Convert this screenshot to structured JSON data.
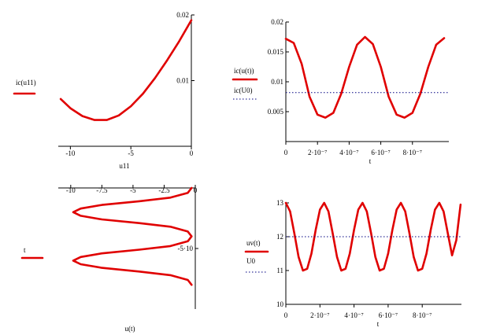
{
  "colors": {
    "curve": "#e00000",
    "dotted": "#000080",
    "axis": "#000000"
  },
  "chart_data": [
    {
      "type": "line",
      "xlabel": "u11",
      "xlim": [
        -11,
        0
      ],
      "ylim": [
        0,
        0.02
      ],
      "x_ticks": [
        {
          "v": -10,
          "label": "-10"
        },
        {
          "v": -5,
          "label": "-5"
        },
        {
          "v": 0,
          "label": "0"
        }
      ],
      "y_ticks": [
        {
          "v": 0.01,
          "label": "0.01"
        },
        {
          "v": 0.02,
          "label": "0.02"
        }
      ],
      "series": [
        {
          "name": "ic(u11)",
          "style": "solid",
          "x": [
            -10.8,
            -10,
            -9,
            -8,
            -7,
            -6,
            -5,
            -4,
            -3,
            -2,
            -1,
            0
          ],
          "y": [
            0.0072,
            0.0058,
            0.0046,
            0.004,
            0.004,
            0.0047,
            0.0061,
            0.008,
            0.0104,
            0.0131,
            0.016,
            0.0192
          ]
        }
      ]
    },
    {
      "type": "line",
      "xlabel": "t",
      "xlim": [
        0,
        1.03e-06
      ],
      "ylim": [
        0,
        0.02
      ],
      "x_ticks": [
        {
          "v": 0,
          "label": "0"
        },
        {
          "v": 2e-07,
          "label": "2·10⁻⁷"
        },
        {
          "v": 4e-07,
          "label": "4·10⁻⁷"
        },
        {
          "v": 6e-07,
          "label": "6·10⁻⁷"
        },
        {
          "v": 8e-07,
          "label": "8·10⁻⁷"
        }
      ],
      "y_ticks": [
        {
          "v": 0.005,
          "label": "0.005"
        },
        {
          "v": 0.01,
          "label": "0.01"
        },
        {
          "v": 0.015,
          "label": "0.015"
        },
        {
          "v": 0.02,
          "label": "0.02"
        }
      ],
      "series": [
        {
          "name": "ic(u(t))",
          "style": "solid",
          "x": [
            0,
            5e-08,
            1e-07,
            1.5e-07,
            2e-07,
            2.5e-07,
            3e-07,
            3.5e-07,
            4e-07,
            4.5e-07,
            5e-07,
            5.5e-07,
            6e-07,
            6.5e-07,
            7e-07,
            7.5e-07,
            8e-07,
            8.5e-07,
            9e-07,
            9.5e-07,
            1e-06
          ],
          "y": [
            0.0172,
            0.0165,
            0.013,
            0.0075,
            0.0045,
            0.004,
            0.0048,
            0.008,
            0.0125,
            0.0162,
            0.0175,
            0.0163,
            0.0125,
            0.0075,
            0.0045,
            0.004,
            0.0048,
            0.008,
            0.0125,
            0.0162,
            0.0173
          ]
        },
        {
          "name": "ic(U0)",
          "style": "dotted",
          "x": [
            0,
            1.03e-06
          ],
          "y": [
            0.0082,
            0.0082
          ]
        }
      ]
    },
    {
      "type": "line",
      "xlabel": "u(t)",
      "xlim": [
        -11,
        0
      ],
      "ylim": [
        0,
        1e-06
      ],
      "y_inverted": true,
      "x_ticks": [
        {
          "v": -10,
          "label": "-10"
        },
        {
          "v": -7.5,
          "label": "-7.5"
        },
        {
          "v": -5,
          "label": "-5"
        },
        {
          "v": -2.5,
          "label": "-2.5"
        },
        {
          "v": 0,
          "label": "0"
        }
      ],
      "y_ticks": [
        {
          "v": 5e-07,
          "label": "-5·10"
        }
      ],
      "series": [
        {
          "name": "t",
          "style": "solid",
          "x": [
            -0.3,
            -0.6,
            -2,
            -4.5,
            -7.5,
            -9.2,
            -9.8,
            -9.2,
            -7.5,
            -4.5,
            -2,
            -0.6,
            -0.3,
            -0.6,
            -2,
            -4.5,
            -7.5,
            -9.2,
            -9.8,
            -9.2,
            -7.5,
            -4.5,
            -2,
            -0.6,
            -0.3
          ],
          "y": [
            0,
            4e-08,
            8e-08,
            1.1e-07,
            1.4e-07,
            1.7e-07,
            2e-07,
            2.3e-07,
            2.6e-07,
            2.9e-07,
            3.2e-07,
            3.6e-07,
            4e-07,
            4.4e-07,
            4.8e-07,
            5.1e-07,
            5.4e-07,
            5.7e-07,
            6e-07,
            6.3e-07,
            6.6e-07,
            6.9e-07,
            7.2e-07,
            7.6e-07,
            8e-07
          ]
        }
      ]
    },
    {
      "type": "line",
      "xlabel": "t",
      "xlim": [
        0,
        1.03e-06
      ],
      "ylim": [
        10,
        13
      ],
      "x_ticks": [
        {
          "v": 0,
          "label": "0"
        },
        {
          "v": 2e-07,
          "label": "2·10⁻⁷"
        },
        {
          "v": 4e-07,
          "label": "4·10⁻⁷"
        },
        {
          "v": 6e-07,
          "label": "6·10⁻⁷"
        },
        {
          "v": 8e-07,
          "label": "8·10⁻⁷"
        }
      ],
      "y_ticks": [
        {
          "v": 10,
          "label": "10"
        },
        {
          "v": 11,
          "label": "11"
        },
        {
          "v": 12,
          "label": "12"
        },
        {
          "v": 13,
          "label": "13"
        }
      ],
      "series": [
        {
          "name": "uv(t)",
          "style": "solid",
          "x": [
            0,
            2.5e-08,
            5e-08,
            7.5e-08,
            1e-07,
            1.25e-07,
            1.5e-07,
            1.75e-07,
            2e-07,
            2.25e-07,
            2.5e-07,
            2.75e-07,
            3e-07,
            3.25e-07,
            3.5e-07,
            3.75e-07,
            4e-07,
            4.25e-07,
            4.5e-07,
            4.75e-07,
            5e-07,
            5.25e-07,
            5.5e-07,
            5.75e-07,
            6e-07,
            6.25e-07,
            6.5e-07,
            6.75e-07,
            7e-07,
            7.25e-07,
            7.5e-07,
            7.75e-07,
            8e-07,
            8.25e-07,
            8.5e-07,
            8.75e-07,
            9e-07,
            9.25e-07,
            9.5e-07,
            9.75e-07,
            1e-06,
            1.025e-06
          ],
          "y": [
            13,
            12.75,
            12.1,
            11.4,
            11.0,
            11.05,
            11.5,
            12.2,
            12.8,
            13.0,
            12.75,
            12.1,
            11.4,
            11.0,
            11.05,
            11.5,
            12.2,
            12.8,
            13.0,
            12.75,
            12.1,
            11.4,
            11.0,
            11.05,
            11.5,
            12.2,
            12.8,
            13.0,
            12.75,
            12.1,
            11.4,
            11.0,
            11.05,
            11.5,
            12.2,
            12.8,
            13.0,
            12.75,
            12.1,
            11.45,
            11.9,
            12.95
          ]
        },
        {
          "name": "U0",
          "style": "dotted",
          "x": [
            0,
            1.03e-06
          ],
          "y": [
            12,
            12
          ]
        }
      ]
    }
  ]
}
